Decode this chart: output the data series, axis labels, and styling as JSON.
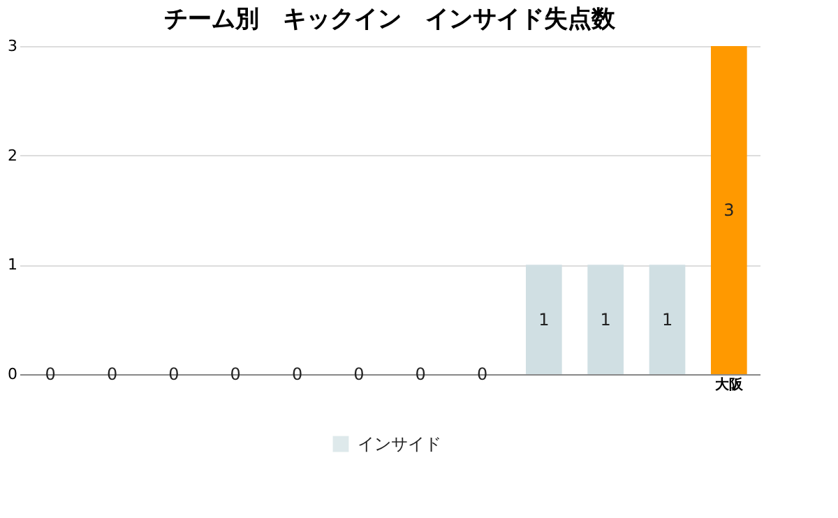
{
  "chart_data": {
    "type": "bar",
    "title": "チーム別　キックイン　インサイド失点数",
    "categories": [
      null,
      null,
      null,
      null,
      null,
      null,
      null,
      null,
      null,
      null,
      null,
      "大阪"
    ],
    "series": [
      {
        "name": "インサイド",
        "color": "#d0dfe3",
        "values": [
          0,
          0,
          0,
          0,
          0,
          0,
          0,
          0,
          1,
          1,
          1,
          3
        ],
        "colors": [
          "#d0dfe3",
          "#d0dfe3",
          "#d0dfe3",
          "#d0dfe3",
          "#d0dfe3",
          "#d0dfe3",
          "#d0dfe3",
          "#d0dfe3",
          "#d0dfe3",
          "#d0dfe3",
          "#d0dfe3",
          "#ff9900"
        ]
      }
    ],
    "ylim": [
      0,
      3
    ],
    "yticks": [
      0,
      1,
      2,
      3
    ],
    "grid": "y",
    "legend": "bottom",
    "data_labels": true
  }
}
